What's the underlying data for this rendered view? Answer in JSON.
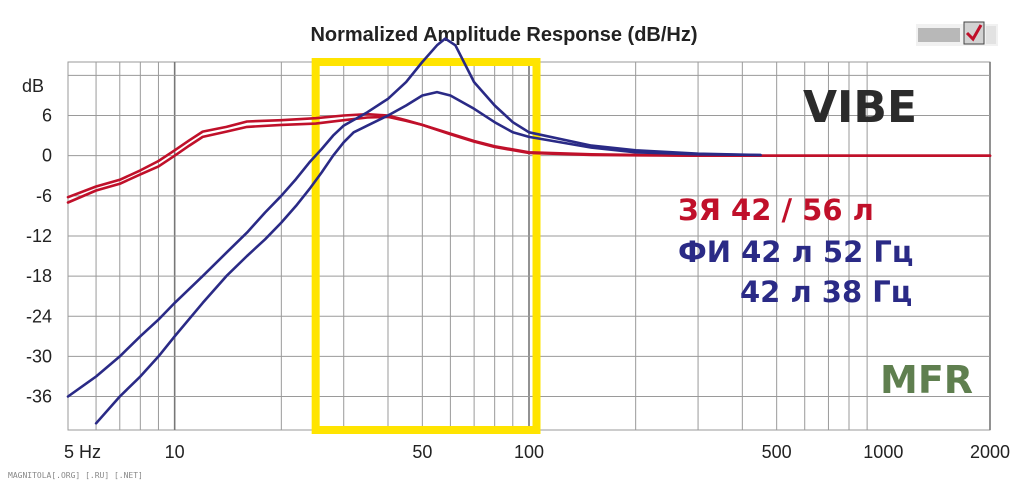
{
  "chart_data": {
    "type": "line",
    "title": "Normalized Amplitude Response (dB/Hz)",
    "x_scale": "log",
    "xlim": [
      5,
      2000
    ],
    "ylim": [
      -41,
      14
    ],
    "x_tick_labels": [
      {
        "value": 5,
        "label": "5 Hz"
      },
      {
        "value": 10,
        "label": "10"
      },
      {
        "value": 50,
        "label": "50"
      },
      {
        "value": 100,
        "label": "100"
      },
      {
        "value": 500,
        "label": "500"
      },
      {
        "value": 1000,
        "label": "1000"
      },
      {
        "value": 2000,
        "label": "2000"
      }
    ],
    "y_unit_label": "dB",
    "y_ticks": [
      6,
      0,
      -6,
      -12,
      -18,
      -24,
      -30,
      -36
    ],
    "y_tick_labels": [
      "6",
      "0",
      "-6",
      "-12",
      "-18",
      "-24",
      "-30",
      "-36"
    ],
    "grid": true,
    "highlight_range_hz": [
      25,
      105
    ],
    "colors": {
      "closed_box": "#c0102a",
      "vented": "#2a2a86",
      "highlight": "#ffe400",
      "grid": "#9a9a9a",
      "vibe": "#2b2b2b",
      "mfr": "#5f7f4f"
    },
    "series": [
      {
        "group": "closed_box",
        "points": [
          [
            5,
            -6.2
          ],
          [
            6,
            -4.6
          ],
          [
            7,
            -3.6
          ],
          [
            8,
            -2.2
          ],
          [
            9,
            -0.8
          ],
          [
            10,
            0.8
          ],
          [
            11,
            2.3
          ],
          [
            12,
            3.6
          ],
          [
            14,
            4.3
          ],
          [
            16,
            5.1
          ],
          [
            20,
            5.3
          ],
          [
            25,
            5.6
          ],
          [
            30,
            6.0
          ],
          [
            35,
            6.2
          ],
          [
            40,
            6.0
          ],
          [
            45,
            5.3
          ],
          [
            50,
            4.6
          ],
          [
            60,
            3.3
          ],
          [
            70,
            2.2
          ],
          [
            80,
            1.4
          ],
          [
            100,
            0.5
          ],
          [
            150,
            0.2
          ],
          [
            300,
            0.0
          ],
          [
            2000,
            0.0
          ]
        ]
      },
      {
        "group": "closed_box",
        "points": [
          [
            5,
            -7.0
          ],
          [
            6,
            -5.2
          ],
          [
            7,
            -4.2
          ],
          [
            8,
            -2.8
          ],
          [
            9,
            -1.6
          ],
          [
            10,
            0.0
          ],
          [
            11,
            1.5
          ],
          [
            12,
            2.8
          ],
          [
            14,
            3.6
          ],
          [
            16,
            4.3
          ],
          [
            20,
            4.6
          ],
          [
            25,
            4.8
          ],
          [
            30,
            5.3
          ],
          [
            35,
            5.7
          ],
          [
            40,
            5.8
          ],
          [
            45,
            5.2
          ],
          [
            50,
            4.6
          ],
          [
            60,
            3.2
          ],
          [
            70,
            2.1
          ],
          [
            80,
            1.3
          ],
          [
            100,
            0.4
          ],
          [
            150,
            0.1
          ],
          [
            300,
            0.0
          ],
          [
            2000,
            0.0
          ]
        ]
      },
      {
        "group": "vented",
        "points": [
          [
            5,
            -36
          ],
          [
            6,
            -33
          ],
          [
            7,
            -30
          ],
          [
            8,
            -27
          ],
          [
            9,
            -24.5
          ],
          [
            10,
            -22
          ],
          [
            12,
            -18
          ],
          [
            14,
            -14.5
          ],
          [
            16,
            -11.5
          ],
          [
            18,
            -8.5
          ],
          [
            20,
            -6
          ],
          [
            22,
            -3.5
          ],
          [
            24,
            -1
          ],
          [
            26,
            1
          ],
          [
            28,
            3
          ],
          [
            30,
            4.5
          ],
          [
            35,
            6.5
          ],
          [
            40,
            8.5
          ],
          [
            45,
            11
          ],
          [
            50,
            14
          ],
          [
            55,
            16.5
          ],
          [
            58,
            17.5
          ],
          [
            62,
            16.5
          ],
          [
            70,
            11
          ],
          [
            80,
            7.5
          ],
          [
            90,
            5
          ],
          [
            100,
            3.5
          ],
          [
            150,
            1.5
          ],
          [
            200,
            0.8
          ],
          [
            300,
            0.3
          ],
          [
            450,
            0.1
          ]
        ]
      },
      {
        "group": "vented",
        "points": [
          [
            6,
            -40
          ],
          [
            7,
            -36
          ],
          [
            8,
            -33
          ],
          [
            9,
            -30
          ],
          [
            10,
            -27
          ],
          [
            12,
            -22
          ],
          [
            14,
            -18
          ],
          [
            16,
            -15
          ],
          [
            18,
            -12.5
          ],
          [
            20,
            -10
          ],
          [
            22,
            -7.5
          ],
          [
            24,
            -5
          ],
          [
            26,
            -2.5
          ],
          [
            28,
            0
          ],
          [
            30,
            2
          ],
          [
            32,
            3.5
          ],
          [
            35,
            4.5
          ],
          [
            40,
            6
          ],
          [
            45,
            7.5
          ],
          [
            50,
            9
          ],
          [
            55,
            9.5
          ],
          [
            60,
            9
          ],
          [
            70,
            7
          ],
          [
            80,
            5
          ],
          [
            90,
            3.5
          ],
          [
            100,
            2.8
          ],
          [
            150,
            1.2
          ],
          [
            200,
            0.5
          ],
          [
            300,
            0.2
          ],
          [
            450,
            0.1
          ]
        ]
      }
    ],
    "annotations": {
      "vibe": "VIBE",
      "closed_box": "ЗЯ 42 / 56 л",
      "vented_a": "ФИ  42 л 52 Гц",
      "vented_b": "42 л 38 Гц",
      "mfr": "MFR"
    },
    "footer": "MAGNITOLA[.ORG] [.RU] [.NET]"
  }
}
